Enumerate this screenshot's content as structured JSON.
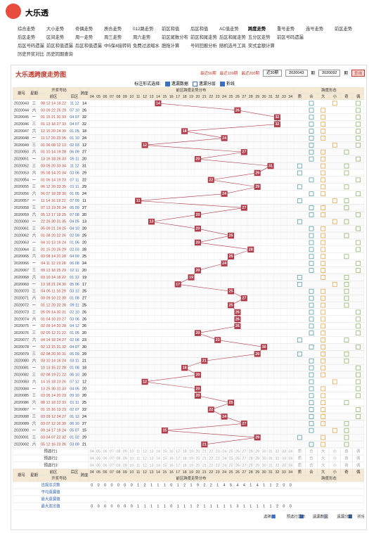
{
  "header": {
    "logo": "大乐透"
  },
  "nav": [
    [
      "综合走势",
      "大小走势",
      "奇偶走势",
      "质合走势",
      "012路走势",
      "前区和值",
      "后区和值",
      "AC值走势",
      "跨度走势",
      "重号走势",
      "连号走势",
      "前区走势"
    ],
    [
      "后区走势",
      "区间走势",
      "周一走势",
      "周三走势",
      "周六走势",
      "前区尾数分布",
      "前区和尾走势",
      "后区和尾走势",
      "五分区走势",
      "前区号码遗漏"
    ],
    [
      "后区号码遗漏",
      "前区和值遗漏",
      "后区和值遗漏",
      "中5保4接转码",
      "免费过滤缩水",
      "胆拖计算",
      "号码回报分析",
      "随机选号工具",
      "奖式金额计算"
    ],
    [
      "历史开奖对比",
      "历史同期查询"
    ]
  ],
  "nav_active": [
    0,
    8
  ],
  "chart_data": {
    "type": "span-trend",
    "title": "大乐透跨度走势图",
    "range_links": [
      "最近50期",
      "最近100期",
      "最近200期"
    ],
    "range_select": "近30期",
    "from": "2020043",
    "to": "2020092",
    "period_unit": "期",
    "query": "查询",
    "mark_label": "标注形式选择:",
    "mark_options": [
      {
        "label": "遗漏数据",
        "checked": true
      },
      {
        "label": "遗漏分层",
        "checked": false
      },
      {
        "label": "折线",
        "checked": true
      }
    ],
    "columns": {
      "issue": "期号",
      "weekday": "星期",
      "draw": "开奖号码",
      "front": "前区",
      "back": "后区",
      "span": "跨度",
      "dist": "前区跨度走势分布",
      "shape": "跨度形态"
    },
    "xlim": [
      4,
      34
    ],
    "xticks": [
      {
        "value": 4,
        "label": "04"
      },
      {
        "value": 5,
        "label": "05"
      },
      {
        "value": 6,
        "label": "06"
      },
      {
        "value": 7,
        "label": "07"
      },
      {
        "value": 8,
        "label": "08"
      },
      {
        "value": 9,
        "label": "09"
      },
      10,
      11,
      12,
      13,
      14,
      15,
      16,
      17,
      18,
      19,
      20,
      21,
      22,
      23,
      24,
      25,
      26,
      27,
      28,
      29,
      30,
      31,
      32,
      33,
      34
    ],
    "shape_labels": [
      "质",
      "合",
      "大",
      "小",
      "奇",
      "偶"
    ],
    "issues": [
      "2020043",
      "2020044",
      "2020045",
      "2020046",
      "2020047",
      "2020048",
      "2020049",
      "2020050",
      "2020051",
      "2020052",
      "2020053",
      "2020054",
      "2020055",
      "2020056",
      "2020057",
      "2020058",
      "2020059",
      "2020060",
      "2020061",
      "2020062",
      "2020063",
      "2020064",
      "2020065",
      "2020066",
      "2020067",
      "2020068",
      "2020069",
      "2020070",
      "2020071",
      "2020072",
      "2020073",
      "2020074",
      "2020075",
      "2020076",
      "2020077",
      "2020078",
      "2020079",
      "2020080",
      "2020081",
      "2020082",
      "2020083",
      "2020084",
      "2020085",
      "2020086",
      "2020087",
      "2020088",
      "2020089",
      "2020090",
      "2020091",
      "2020092"
    ],
    "weekdays": [
      "三",
      "六",
      "一",
      "三",
      "六",
      "一",
      "三",
      "六",
      "一",
      "三",
      "六",
      "一",
      "三",
      "六",
      "一",
      "三",
      "六",
      "一",
      "三",
      "六",
      "一",
      "三",
      "六",
      "一",
      "三",
      "六",
      "一",
      "三",
      "六",
      "一",
      "三",
      "六",
      "一",
      "三",
      "六",
      "一",
      "三",
      "六",
      "一",
      "三",
      "六",
      "一",
      "三",
      "六",
      "一",
      "三",
      "六",
      "一",
      "三",
      "六"
    ],
    "front": [
      "08 12 14 18 22",
      "03 09 22 26 29",
      "01 15 21 30 33",
      "01 13 18 27 33",
      "12 15 20 24 30",
      "11 17 20 23 35",
      "01 06 08 12 13",
      "01 10 14 19 28",
      "13 16 18 26 33",
      "03 05 20 33 34",
      "05 08 14 20 34",
      "01 06 14 19 23",
      "06 12 20 33 35",
      "06 07 18 28 30",
      "11 14 16 19 22",
      "07 13 19 26 34",
      "05 13 17 19 25",
      "22 26 30 31 35",
      "05 09 21 24 25",
      "01 08 20 22 26",
      "04 10 13 19 24",
      "01 15 20 26 29",
      "03 08 14 20 28",
      "04 11 12 19 28",
      "09 13 18 25 29",
      "03 10 14 18 22",
      "13 18 21 24 30",
      "04 05 11 16 29",
      "03 09 10 22 30",
      "01 12 20 22 26",
      "05 09 14 30 31",
      "01 04 10 23 27",
      "02 09 14 20 28",
      "02 05 12 21 22",
      "04 14 18 24 27",
      "02 13 15 31 32",
      "02 08 20 30 31",
      "03 10 14 16 24",
      "10 13 15 22 28",
      "02 08 19 21 22",
      "14 15 18 23 26",
      "13 25 30 32 33",
      "03 05 14 20 23",
      "08 12 18 22 33",
      "01 15 16 19 23",
      "03 09 12 24 27",
      "03 07 12 16 30",
      "09 14 17 19 24",
      "03 04 07 22 32",
      "05 12 16 23 26"
    ],
    "back": [
      "11 12",
      "07 10",
      "04 07",
      "04 07",
      "01 05",
      "01 10",
      "02 03",
      "06 09",
      "05 11",
      "11 12",
      "03 06",
      "07 11",
      "01 11",
      "01 05",
      "07 09",
      "05 09",
      "07 08",
      "04 05",
      "04 10",
      "02 09",
      "01 06",
      "02 03",
      "04 09",
      "06 08",
      "02 11",
      "01 12",
      "05 06",
      "03 12",
      "01 08",
      "09 11",
      "02 10",
      "03 06",
      "04 12",
      "01 05",
      "02 08",
      "04 07",
      "05 09",
      "03 11",
      "01 08",
      "06 10",
      "07 12",
      "04 05",
      "09 10",
      "01 11",
      "02 07",
      "01 12",
      "06 10",
      "05 07",
      "01 02",
      "03 09"
    ],
    "values": [
      14,
      26,
      32,
      32,
      18,
      24,
      12,
      27,
      20,
      31,
      29,
      22,
      29,
      24,
      11,
      27,
      20,
      13,
      20,
      25,
      20,
      28,
      25,
      24,
      20,
      19,
      17,
      25,
      27,
      25,
      26,
      26,
      26,
      20,
      23,
      30,
      29,
      21,
      18,
      20,
      12,
      20,
      20,
      25,
      22,
      24,
      27,
      15,
      29,
      21
    ],
    "line_color": "#b03a48",
    "marker_color": "#b03a48",
    "preselect": [
      "预选行1",
      "预选行2",
      "预选行3"
    ],
    "stats": [
      {
        "name": "出现总次数",
        "values": [
          0,
          0,
          0,
          0,
          0,
          0,
          0,
          1,
          2,
          1,
          1,
          1,
          0,
          1,
          2,
          1,
          9,
          2,
          2,
          1,
          4,
          5,
          4,
          4,
          1,
          4,
          1,
          1,
          2,
          0,
          0
        ]
      },
      {
        "name": "平均遗漏值"
      },
      {
        "name": "最大遗漏值"
      },
      {
        "name": "最大连出值",
        "values": [
          0,
          0,
          0,
          0,
          0,
          0,
          0,
          1,
          1,
          1,
          1,
          1,
          0,
          1,
          1,
          1,
          2,
          1,
          1,
          1,
          1,
          1,
          3,
          1,
          1,
          1,
          1,
          1,
          2,
          0,
          0
        ]
      }
    ],
    "footer_label": "选择:",
    "footer_options": [
      {
        "label": "预选行显示",
        "checked": true
      },
      {
        "label": "遗漏数据",
        "checked": true
      },
      {
        "label": "遗漏分层",
        "checked": false
      },
      {
        "label": "折线",
        "checked": true
      }
    ]
  }
}
